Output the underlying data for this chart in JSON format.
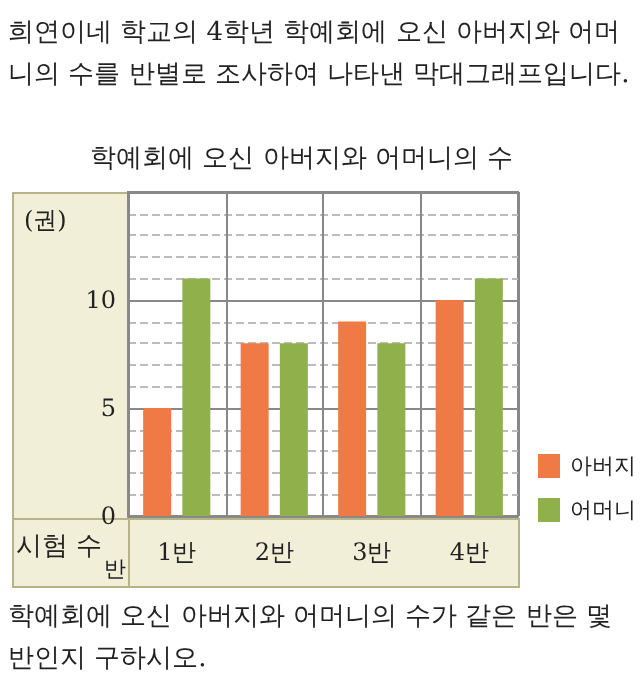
{
  "chart_data": {
    "type": "bar",
    "title": "학예회에 오신 아버지와 어머니의 수",
    "ylabel": "(권)",
    "xlabel": "반",
    "annotations": [
      "희연이네 학교의 4학년 학예회에 오신 아버지와 어머니의 수를 반별로 조사하여 나타낸 막대그래프입니다.",
      "학예회에 오신 아버지와 어머니의 수가 같은 반은 몇 반인지 구하시오.",
      "시험 수"
    ],
    "categories": [
      "1반",
      "2반",
      "3반",
      "4반"
    ],
    "series": [
      {
        "name": "아버지",
        "color": "#ef7a45",
        "values": [
          5,
          8,
          9,
          10
        ]
      },
      {
        "name": "어머니",
        "color": "#8fb04a",
        "values": [
          11,
          8,
          8,
          11
        ]
      }
    ],
    "ylim": [
      0,
      15
    ],
    "yticks": [
      0,
      5,
      10
    ],
    "grid": true,
    "legend": "right"
  }
}
